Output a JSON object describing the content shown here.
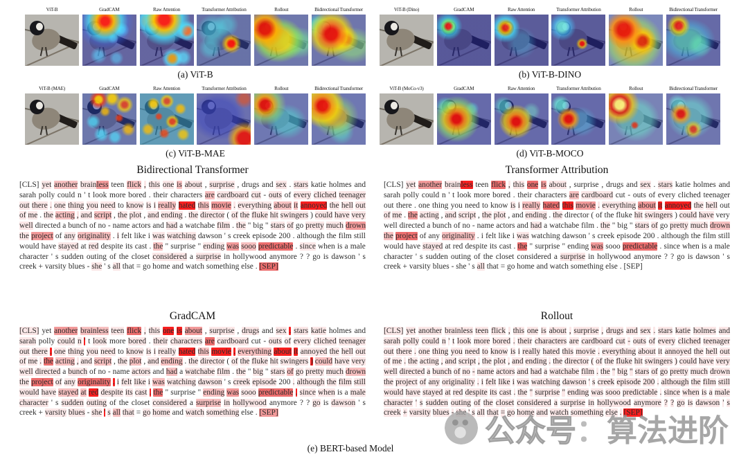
{
  "figure": {
    "method_labels": [
      "GradCAM",
      "Raw Attention",
      "Transformer Attribution",
      "Rollout",
      "Bidirectional Transformer"
    ],
    "heatmap_palette": {
      "cold": "#2328a0",
      "mid": "#3fd6e0",
      "warm": "#ffd800",
      "hot": "#e61408"
    },
    "groups": [
      {
        "id": "a",
        "model_label": "ViT-B",
        "caption": "(a) ViT-B",
        "variants": [
          "photo",
          "a2",
          "a3",
          "a4",
          "a5",
          "a6"
        ]
      },
      {
        "id": "b",
        "model_label": "ViT-B (Dino)",
        "caption": "(b) ViT-B-DINO",
        "variants": [
          "photo",
          "b2",
          "b3",
          "b4",
          "b5",
          "b6"
        ]
      },
      {
        "id": "c",
        "model_label": "ViT-B (MAE)",
        "caption": "(c) ViT-B-MAE",
        "variants": [
          "photo",
          "c2",
          "c3",
          "c4",
          "c5",
          "c6"
        ]
      },
      {
        "id": "d",
        "model_label": "ViT-B (MoCo-v3)",
        "caption": "(d) ViT-B-MOCO",
        "variants": [
          "photo",
          "d2",
          "d3",
          "d4",
          "d5",
          "d6"
        ]
      }
    ]
  },
  "text_figure": {
    "caption": "(e) BERT-based Model",
    "highlight_palette": {
      "0": "transparent",
      "1": "#fbe7e7",
      "2": "#f7c0c0",
      "3": "#f29a9a",
      "4": "#ed6e6e",
      "5": "#f81f1f"
    },
    "tokens": [
      "[CLS]",
      "yet",
      "another",
      "brain",
      "##less",
      "teen",
      "flick",
      ",",
      "this",
      "one",
      "is",
      "about",
      ",",
      "surprise",
      ",",
      "drugs",
      "and",
      "sex",
      ".",
      "stars",
      "katie",
      "holmes",
      "and",
      "sarah",
      "polly",
      "could",
      "n",
      "'",
      "t",
      "look",
      "more",
      "bored",
      ".",
      "their",
      "characters",
      "are",
      "cardboard",
      "cut",
      "-",
      "outs",
      "of",
      "every",
      "cliched",
      "teenager",
      "out",
      "there",
      ".",
      "one",
      "thing",
      "you",
      "need",
      "to",
      "know",
      "is",
      "i",
      "really",
      "hated",
      "this",
      "movie",
      ".",
      "everything",
      "about",
      "it",
      "annoyed",
      "the",
      "hell",
      "out",
      "of",
      "me",
      ".",
      "the",
      "acting",
      ",",
      "and",
      "script",
      ",",
      "the",
      "plot",
      ",",
      "and",
      "ending",
      ".",
      "the",
      "director",
      "(",
      "of",
      "the",
      "fluke",
      "hit",
      "swingers",
      ")",
      "could",
      "have",
      "very",
      "well",
      "directed",
      "a",
      "bunch",
      "of",
      "no",
      "-",
      "name",
      "actors",
      "and",
      "had",
      "a",
      "watchabe",
      "film",
      ".",
      "the",
      "\"",
      "big",
      "\"",
      "stars",
      "of",
      "go",
      "pretty",
      "much",
      "drown",
      "the",
      "project",
      "of",
      "any",
      "originality",
      ".",
      "i",
      "felt",
      "like",
      "i",
      "was",
      "watching",
      "dawson",
      "'",
      "s",
      "creek",
      "episode",
      "200",
      ".",
      "although",
      "the",
      "film",
      "still",
      "would",
      "have",
      "stayed",
      "at",
      "red",
      "despite",
      "its",
      "cast",
      ".",
      "the",
      "\"",
      "surprise",
      "\"",
      "ending",
      "was",
      "sooo",
      "predictable",
      ".",
      "since",
      "when",
      "is",
      "a",
      "male",
      "character",
      "'",
      "s",
      "sudden",
      "outing",
      "of",
      "the",
      "closet",
      "considered",
      "a",
      "surprise",
      "in",
      "hollywood",
      "anymore",
      "?",
      "?",
      "go",
      "is",
      "dawson",
      "'",
      "s",
      "creek",
      "+",
      "varsity",
      "blues",
      "-",
      "she",
      "'",
      "s",
      "all",
      "that",
      "=",
      "go",
      "home",
      "and",
      "watch",
      "something",
      "else",
      ".",
      "[SEP]"
    ],
    "blocks": [
      {
        "title": "Bidirectional Transformer",
        "default_level": 0,
        "overrides": {
          "1": 1,
          "2": 2,
          "3": 1,
          "4": 3,
          "6": 2,
          "7": 1,
          "8": 1,
          "9": 1,
          "10": 2,
          "11": 1,
          "13": 1,
          "17": 1,
          "19": 1,
          "35": 2,
          "36": 1,
          "37": 1,
          "39": 1,
          "41": 1,
          "42": 1,
          "43": 1,
          "44": 1,
          "45": 1,
          "46": 1,
          "47": 1,
          "48": 1,
          "49": 1,
          "50": 1,
          "52": 1,
          "53": 1,
          "54": 1,
          "55": 2,
          "56": 5,
          "57": 2,
          "58": 3,
          "59": 1,
          "60": 1,
          "61": 2,
          "62": 2,
          "63": 5,
          "64": 1,
          "65": 1,
          "66": 1,
          "67": 1,
          "68": 1,
          "70": 1,
          "71": 2,
          "72": 1,
          "73": 1,
          "74": 2,
          "76": 1,
          "77": 1,
          "79": 1,
          "80": 1,
          "82": 1,
          "83": 1,
          "85": 1,
          "86": 1,
          "87": 1,
          "88": 1,
          "89": 1,
          "91": 1,
          "92": 1,
          "93": 1,
          "94": 1,
          "104": 1,
          "107": 1,
          "109": 1,
          "113": 1,
          "114": 1,
          "116": 1,
          "117": 1,
          "118": 3,
          "119": 1,
          "120": 3,
          "122": 1,
          "123": 2,
          "125": 1,
          "129": 1,
          "130": 1,
          "144": 1,
          "146": 1,
          "151": 2,
          "155": 1,
          "156": 3,
          "157": 2,
          "158": 4,
          "160": 1,
          "173": 1,
          "175": 1,
          "191": 1,
          "194": 1,
          "204": 4
        }
      },
      {
        "title": "Transformer Attribution",
        "default_level": 0,
        "overrides": {
          "1": 1,
          "2": 3,
          "3": 1,
          "4": 5,
          "6": 4,
          "7": 1,
          "8": 1,
          "9": 4,
          "10": 3,
          "11": 1,
          "17": 1,
          "19": 1,
          "35": 2,
          "36": 1,
          "53": 1,
          "54": 1,
          "55": 2,
          "56": 4,
          "57": 5,
          "58": 3,
          "59": 1,
          "60": 1,
          "61": 3,
          "62": 5,
          "63": 5,
          "64": 1,
          "65": 1,
          "67": 1,
          "68": 1,
          "70": 3,
          "71": 1,
          "73": 1,
          "74": 1,
          "76": 1,
          "77": 1,
          "80": 1,
          "82": 1,
          "88": 1,
          "89": 1,
          "91": 1,
          "92": 1,
          "104": 1,
          "109": 1,
          "113": 1,
          "114": 1,
          "116": 1,
          "117": 1,
          "118": 2,
          "119": 2,
          "120": 4,
          "123": 2,
          "129": 1,
          "144": 1,
          "151": 4,
          "156": 3,
          "158": 4,
          "175": 1,
          "194": 1
        }
      },
      {
        "title": "GradCAM",
        "default_level": 0,
        "overrides": {
          "0": 1,
          "2": 3,
          "3": 2,
          "4": 2,
          "5": 1,
          "6": 4,
          "7": 1,
          "8": 1,
          "9": 5,
          "10": 5,
          "11": 3,
          "13": 1,
          "15": 1,
          "17": 1,
          "18": 5,
          "19": 1,
          "20": 1,
          "23": 1,
          "25": 1,
          "26": 1,
          "27": 5,
          "29": 1,
          "31": 1,
          "33": 1,
          "34": 1,
          "35": 4,
          "36": 1,
          "39": 1,
          "40": 1,
          "41": 1,
          "42": 1,
          "43": 1,
          "44": 1,
          "45": 1,
          "46": 5,
          "47": 1,
          "48": 1,
          "49": 1,
          "50": 1,
          "52": 1,
          "53": 1,
          "54": 1,
          "55": 1,
          "56": 5,
          "57": 2,
          "58": 5,
          "59": 5,
          "60": 2,
          "61": 5,
          "62": 5,
          "63": 1,
          "64": 1,
          "65": 1,
          "66": 1,
          "67": 1,
          "68": 1,
          "69": 1,
          "70": 4,
          "71": 2,
          "72": 1,
          "73": 1,
          "74": 2,
          "76": 1,
          "77": 2,
          "79": 1,
          "80": 2,
          "82": 1,
          "83": 1,
          "85": 1,
          "86": 1,
          "87": 1,
          "88": 1,
          "89": 1,
          "90": 5,
          "91": 2,
          "92": 1,
          "93": 1,
          "94": 1,
          "95": 1,
          "97": 1,
          "102": 1,
          "104": 2,
          "106": 1,
          "107": 1,
          "109": 1,
          "111": 1,
          "113": 1,
          "114": 2,
          "115": 1,
          "116": 1,
          "117": 1,
          "118": 2,
          "119": 1,
          "120": 4,
          "121": 1,
          "122": 1,
          "123": 4,
          "124": 5,
          "125": 1,
          "126": 1,
          "127": 1,
          "128": 1,
          "129": 2,
          "130": 1,
          "131": 1,
          "134": 1,
          "135": 1,
          "137": 1,
          "138": 1,
          "139": 1,
          "140": 1,
          "141": 1,
          "142": 1,
          "143": 1,
          "144": 2,
          "145": 2,
          "146": 5,
          "147": 1,
          "148": 1,
          "149": 1,
          "150": 5,
          "151": 4,
          "155": 2,
          "156": 3,
          "157": 1,
          "158": 4,
          "159": 5,
          "160": 1,
          "161": 1,
          "164": 1,
          "165": 1,
          "168": 1,
          "169": 1,
          "173": 1,
          "175": 2,
          "176": 1,
          "177": 1,
          "181": 1,
          "183": 1,
          "188": 1,
          "189": 1,
          "191": 1,
          "192": 5,
          "193": 1,
          "194": 2,
          "195": 1,
          "197": 1,
          "198": 1,
          "200": 1,
          "201": 1,
          "204": 3
        }
      },
      {
        "title": "Rollout",
        "default_level": 1,
        "overrides": {
          "204": 5
        }
      }
    ]
  },
  "watermark": {
    "prefix": "公众号",
    "separator": "：",
    "name": "算法进阶"
  }
}
